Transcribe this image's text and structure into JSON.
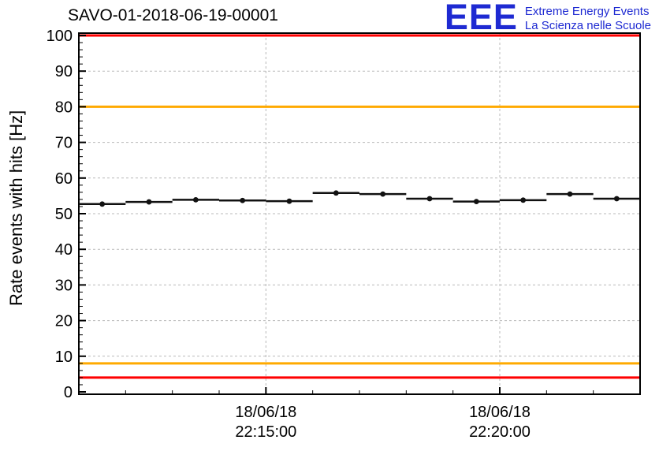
{
  "page": {
    "background": "#ffffff"
  },
  "logo": {
    "mark": "EEE",
    "line1": "Extreme Energy Events",
    "line2": "La Scienza nelle Scuole",
    "color": "#1e2ad2"
  },
  "chart_data": {
    "type": "scatter",
    "title": "SAVO-01-2018-06-19-00001",
    "ylabel": "Rate events with hits [Hz]",
    "xlabel": "",
    "ylim": [
      0,
      100
    ],
    "y_ticks": [
      0,
      10,
      20,
      30,
      40,
      50,
      60,
      70,
      80,
      90,
      100
    ],
    "grid": {
      "on": true,
      "dashed": true,
      "color": "#b9b9b9"
    },
    "legend": "none",
    "x_axis": {
      "start": "22:11:00",
      "end": "22:23:00",
      "minor_tick_seconds": 60,
      "major_ticks": [
        {
          "date": "18/06/18",
          "time": "22:15:00"
        },
        {
          "date": "18/06/18",
          "time": "22:20:00"
        }
      ]
    },
    "thresholds": [
      {
        "y": 100,
        "color": "#ff0000",
        "level": "alarm-high"
      },
      {
        "y": 80,
        "color": "#ffaa00",
        "level": "warning-high"
      },
      {
        "y": 8,
        "color": "#ffaa00",
        "level": "warning-low"
      },
      {
        "y": 4,
        "color": "#ff0000",
        "level": "alarm-low"
      }
    ],
    "series": [
      {
        "name": "rate-events-with-hits",
        "marker": "circle",
        "color": "#111111",
        "xerr_seconds": 30,
        "yerr": 0.6,
        "points": [
          {
            "time": "22:11:30",
            "y": 52.7
          },
          {
            "time": "22:12:30",
            "y": 53.3
          },
          {
            "time": "22:13:30",
            "y": 53.9
          },
          {
            "time": "22:14:30",
            "y": 53.7
          },
          {
            "time": "22:15:30",
            "y": 53.5
          },
          {
            "time": "22:16:30",
            "y": 55.8
          },
          {
            "time": "22:17:30",
            "y": 55.5
          },
          {
            "time": "22:18:30",
            "y": 54.2
          },
          {
            "time": "22:19:30",
            "y": 53.4
          },
          {
            "time": "22:20:30",
            "y": 53.8
          },
          {
            "time": "22:21:30",
            "y": 55.5
          },
          {
            "time": "22:22:30",
            "y": 54.2
          }
        ]
      }
    ]
  }
}
